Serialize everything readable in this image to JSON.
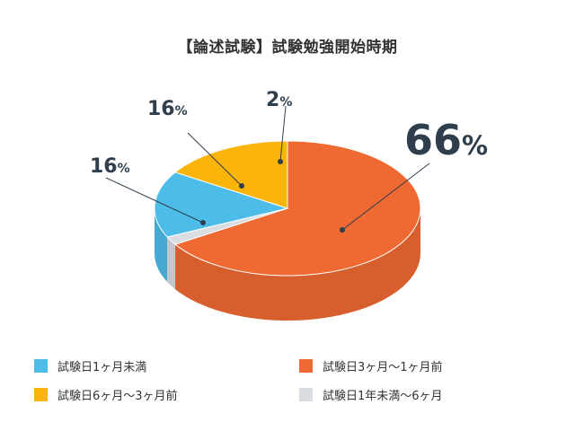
{
  "chart_data": {
    "type": "pie",
    "title": "【論述試験】試験勉強開始時期",
    "slices": [
      {
        "name": "試験日3ヶ月〜1ヶ月前",
        "value": 66,
        "label": "66",
        "color": "#ef6a32"
      },
      {
        "name": "試験日1年未満〜6ヶ月",
        "value": 2,
        "label": "2",
        "color": "#d9dde2"
      },
      {
        "name": "試験日1ヶ月未満",
        "value": 16,
        "label": "16",
        "color": "#4dbce9"
      },
      {
        "name": "試験日6ヶ月〜3ヶ月前",
        "value": 16,
        "label": "16",
        "color": "#fbb40a"
      }
    ],
    "unit": "%",
    "legend": [
      {
        "name": "試験日1ヶ月未満",
        "color": "#4dbce9"
      },
      {
        "name": "試験日3ヶ月〜1ヶ月前",
        "color": "#ef6a32"
      },
      {
        "name": "試験日6ヶ月〜3ヶ月前",
        "color": "#fbb40a"
      },
      {
        "name": "試験日1年未満〜6ヶ月",
        "color": "#d9dde2"
      }
    ],
    "legend_position": "bottom"
  }
}
